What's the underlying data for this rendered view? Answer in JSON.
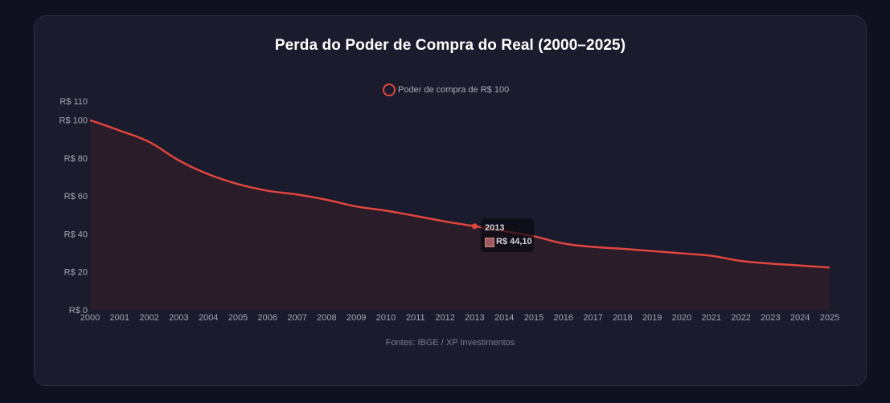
{
  "source_text": "Fontes: IBGE / XP Investimentos",
  "colors": {
    "line": "#e0463e",
    "fill": "#2b1c2a",
    "background": "#0f1020",
    "card": "#1a1b2c"
  },
  "tooltip": {
    "year": "2013",
    "value": "R$ 44,10"
  },
  "chart_data": {
    "type": "area",
    "title": "Perda do Poder de Compra do Real (2000–2025)",
    "xlabel": "",
    "ylabel": "",
    "legend": "top-center",
    "grid": false,
    "series": [
      {
        "name": "Poder de compra de R$ 100",
        "values": [
          100,
          94.5,
          88.5,
          78.8,
          71.5,
          66.3,
          62.8,
          60.8,
          58.0,
          54.5,
          52.3,
          49.5,
          46.6,
          44.1,
          41.5,
          38.8,
          35.0,
          33.2,
          32.2,
          31.0,
          29.8,
          28.5,
          25.8,
          24.4,
          23.4,
          22.3
        ]
      }
    ],
    "categories": [
      "2000",
      "2001",
      "2002",
      "2003",
      "2004",
      "2005",
      "2006",
      "2007",
      "2008",
      "2009",
      "2010",
      "2011",
      "2012",
      "2013",
      "2014",
      "2015",
      "2016",
      "2017",
      "2018",
      "2019",
      "2020",
      "2021",
      "2022",
      "2023",
      "2024",
      "2025"
    ],
    "ylim": [
      0,
      110
    ],
    "ytick_values": [
      0,
      20,
      40,
      60,
      80,
      100,
      110
    ],
    "ytick_labels": [
      "R$ 0",
      "R$ 20",
      "R$ 40",
      "R$ 60",
      "R$ 80",
      "R$ 100",
      "R$ 110"
    ],
    "highlight_category": "2013"
  }
}
